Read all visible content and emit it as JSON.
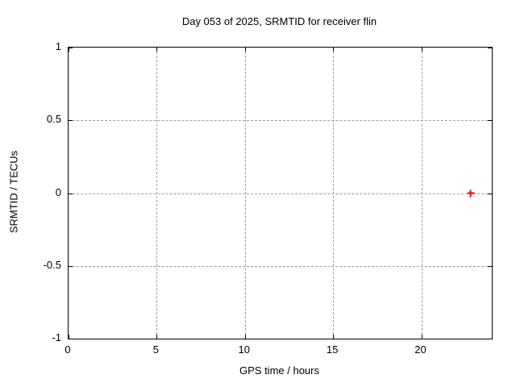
{
  "chart_data": {
    "type": "scatter",
    "title": "Day 053 of 2025, SRMTID for receiver flin",
    "xlabel": "GPS time / hours",
    "ylabel": "SRMTID / TECUs",
    "xlim": [
      0,
      24
    ],
    "ylim": [
      -1,
      1
    ],
    "x_ticks": [
      0,
      5,
      10,
      15,
      20
    ],
    "y_ticks": [
      1,
      0.5,
      0,
      -0.5,
      -1
    ],
    "grid": true,
    "legend_position": "none",
    "background": "#ffffff",
    "colors": {
      "border": "#000000",
      "grid": "#9e9e9e",
      "text": "#000000"
    },
    "series": [
      {
        "name": "SRMTID",
        "marker": "plus",
        "color": "#ff0000",
        "points": [
          {
            "x": 22.8,
            "y": 0.0
          }
        ]
      }
    ]
  }
}
